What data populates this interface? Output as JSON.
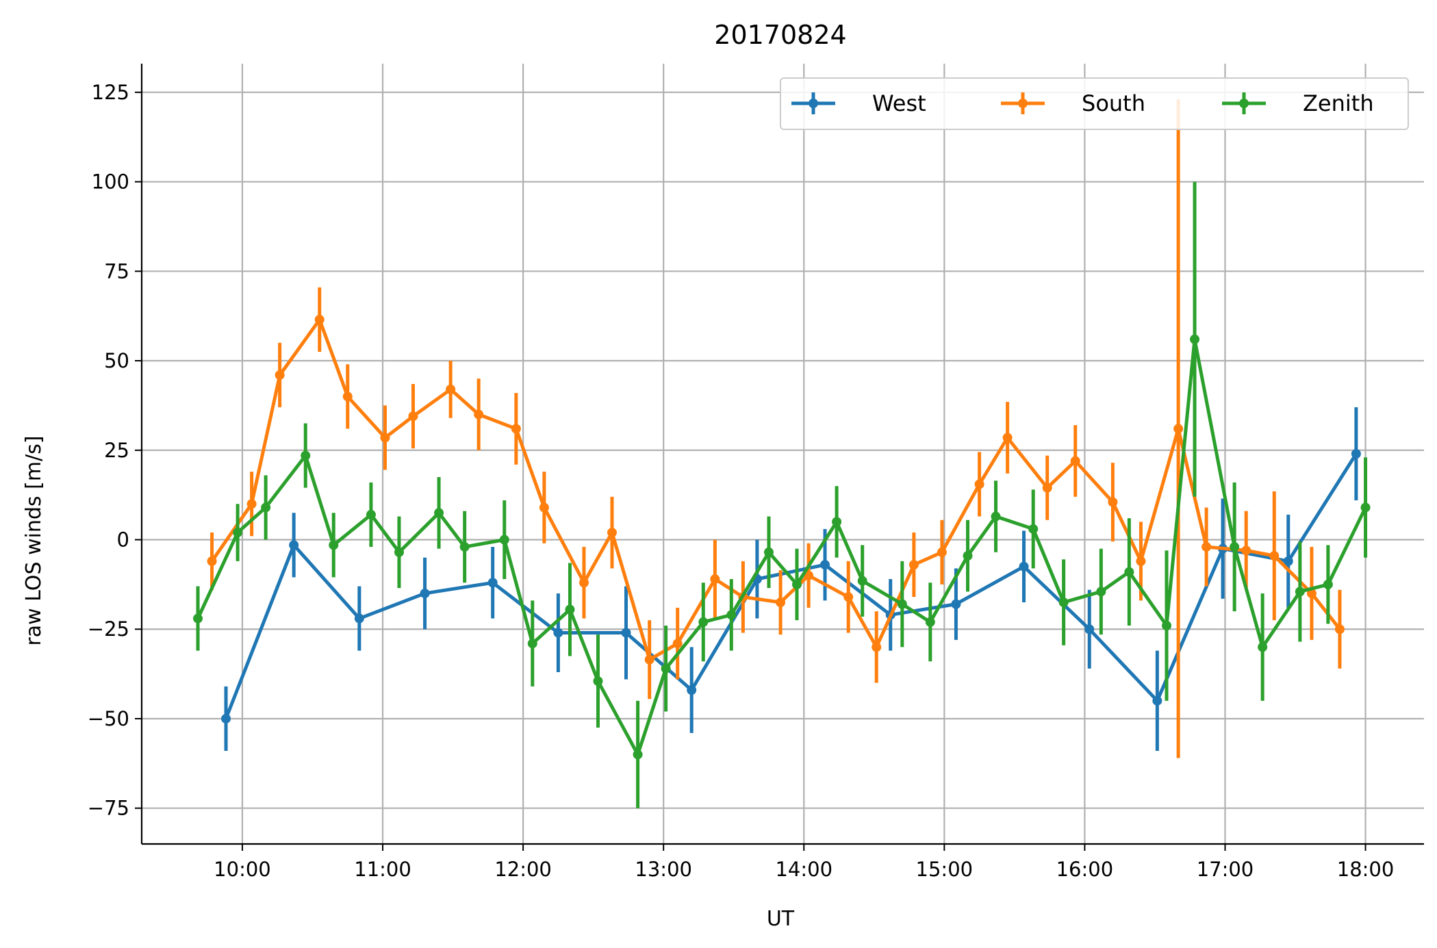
{
  "chart_data": {
    "type": "line",
    "title": "20170824",
    "xlabel": "UT",
    "ylabel": "raw LOS winds [m/s]",
    "grid": true,
    "legend_position": "top-right",
    "legend_columns": 3,
    "xlim": [
      "09:17",
      "18:25"
    ],
    "ylim": [
      -85,
      133
    ],
    "x_ticks": [
      "10:00",
      "11:00",
      "12:00",
      "13:00",
      "14:00",
      "15:00",
      "16:00",
      "17:00",
      "18:00"
    ],
    "y_ticks": [
      125,
      100,
      75,
      50,
      25,
      0,
      -25,
      -50,
      -75
    ],
    "series": [
      {
        "name": "West",
        "color": "#1f77b4",
        "points": [
          {
            "x": "09:53",
            "y": -50,
            "err": 9
          },
          {
            "x": "10:22",
            "y": -1.5,
            "err": 9
          },
          {
            "x": "10:50",
            "y": -22,
            "err": 9
          },
          {
            "x": "11:18",
            "y": -15,
            "err": 10
          },
          {
            "x": "11:47",
            "y": -12,
            "err": 10
          },
          {
            "x": "12:15",
            "y": -26,
            "err": 11
          },
          {
            "x": "12:44",
            "y": -26,
            "err": 13
          },
          {
            "x": "13:12",
            "y": -42,
            "err": 12
          },
          {
            "x": "13:40",
            "y": -11,
            "err": 11
          },
          {
            "x": "14:09",
            "y": -7,
            "err": 10
          },
          {
            "x": "14:37",
            "y": -21,
            "err": 10
          },
          {
            "x": "15:05",
            "y": -18,
            "err": 10
          },
          {
            "x": "15:34",
            "y": -7.5,
            "err": 10
          },
          {
            "x": "16:02",
            "y": -25,
            "err": 11
          },
          {
            "x": "16:31",
            "y": -45,
            "err": 14
          },
          {
            "x": "16:59",
            "y": -2.5,
            "err": 14
          },
          {
            "x": "17:27",
            "y": -6,
            "err": 13
          },
          {
            "x": "17:56",
            "y": 24,
            "err": 13
          }
        ]
      },
      {
        "name": "South",
        "color": "#ff7f0e",
        "points": [
          {
            "x": "09:47",
            "y": -6,
            "err": 8
          },
          {
            "x": "10:04",
            "y": 10,
            "err": 9
          },
          {
            "x": "10:16",
            "y": 46,
            "err": 9
          },
          {
            "x": "10:33",
            "y": 61.5,
            "err": 9
          },
          {
            "x": "10:45",
            "y": 40,
            "err": 9
          },
          {
            "x": "11:01",
            "y": 28.5,
            "err": 9
          },
          {
            "x": "11:13",
            "y": 34.5,
            "err": 9
          },
          {
            "x": "11:29",
            "y": 42,
            "err": 8
          },
          {
            "x": "11:41",
            "y": 35,
            "err": 10
          },
          {
            "x": "11:57",
            "y": 31,
            "err": 10
          },
          {
            "x": "12:09",
            "y": 9,
            "err": 10
          },
          {
            "x": "12:26",
            "y": -12,
            "err": 10
          },
          {
            "x": "12:38",
            "y": 2,
            "err": 10
          },
          {
            "x": "12:54",
            "y": -33.5,
            "err": 11
          },
          {
            "x": "13:06",
            "y": -29,
            "err": 10
          },
          {
            "x": "13:22",
            "y": -11,
            "err": 11
          },
          {
            "x": "13:34",
            "y": -16,
            "err": 10
          },
          {
            "x": "13:50",
            "y": -17.5,
            "err": 9
          },
          {
            "x": "14:02",
            "y": -10,
            "err": 9
          },
          {
            "x": "14:19",
            "y": -16,
            "err": 10
          },
          {
            "x": "14:31",
            "y": -30,
            "err": 10
          },
          {
            "x": "14:47",
            "y": -7,
            "err": 9
          },
          {
            "x": "14:59",
            "y": -3.5,
            "err": 9
          },
          {
            "x": "15:15",
            "y": 15.5,
            "err": 9
          },
          {
            "x": "15:27",
            "y": 28.5,
            "err": 10
          },
          {
            "x": "15:44",
            "y": 14.5,
            "err": 9
          },
          {
            "x": "15:56",
            "y": 22,
            "err": 10
          },
          {
            "x": "16:12",
            "y": 10.5,
            "err": 11
          },
          {
            "x": "16:24",
            "y": -6,
            "err": 11
          },
          {
            "x": "16:40",
            "y": 31,
            "err": 92
          },
          {
            "x": "16:52",
            "y": -2,
            "err": 11
          },
          {
            "x": "17:09",
            "y": -3,
            "err": 11
          },
          {
            "x": "17:21",
            "y": -4.5,
            "err": 18
          },
          {
            "x": "17:37",
            "y": -15,
            "err": 13
          },
          {
            "x": "17:49",
            "y": -25,
            "err": 11
          }
        ]
      },
      {
        "name": "Zenith",
        "color": "#2ca02c",
        "points": [
          {
            "x": "09:41",
            "y": -22,
            "err": 9
          },
          {
            "x": "09:58",
            "y": 2,
            "err": 8
          },
          {
            "x": "10:10",
            "y": 9,
            "err": 9
          },
          {
            "x": "10:27",
            "y": 23.5,
            "err": 9
          },
          {
            "x": "10:39",
            "y": -1.5,
            "err": 9
          },
          {
            "x": "10:55",
            "y": 7,
            "err": 9
          },
          {
            "x": "11:07",
            "y": -3.5,
            "err": 10
          },
          {
            "x": "11:24",
            "y": 7.5,
            "err": 10
          },
          {
            "x": "11:35",
            "y": -2,
            "err": 10
          },
          {
            "x": "11:52",
            "y": 0,
            "err": 11
          },
          {
            "x": "12:04",
            "y": -29,
            "err": 12
          },
          {
            "x": "12:20",
            "y": -19.5,
            "err": 13
          },
          {
            "x": "12:32",
            "y": -39.5,
            "err": 13
          },
          {
            "x": "12:49",
            "y": -60,
            "err": 15
          },
          {
            "x": "13:01",
            "y": -36,
            "err": 12
          },
          {
            "x": "13:17",
            "y": -23,
            "err": 11
          },
          {
            "x": "13:29",
            "y": -21,
            "err": 10
          },
          {
            "x": "13:45",
            "y": -3.5,
            "err": 10
          },
          {
            "x": "13:57",
            "y": -12.5,
            "err": 10
          },
          {
            "x": "14:14",
            "y": 5,
            "err": 10
          },
          {
            "x": "14:25",
            "y": -11.5,
            "err": 10
          },
          {
            "x": "14:42",
            "y": -18,
            "err": 12
          },
          {
            "x": "14:54",
            "y": -23,
            "err": 11
          },
          {
            "x": "15:10",
            "y": -4.5,
            "err": 10
          },
          {
            "x": "15:22",
            "y": 6.5,
            "err": 10
          },
          {
            "x": "15:38",
            "y": 3,
            "err": 11
          },
          {
            "x": "15:51",
            "y": -17.5,
            "err": 12
          },
          {
            "x": "16:07",
            "y": -14.5,
            "err": 12
          },
          {
            "x": "16:19",
            "y": -9,
            "err": 15
          },
          {
            "x": "16:35",
            "y": -24,
            "err": 21
          },
          {
            "x": "16:47",
            "y": 56,
            "err": 44
          },
          {
            "x": "17:04",
            "y": -2,
            "err": 18
          },
          {
            "x": "17:16",
            "y": -30,
            "err": 15
          },
          {
            "x": "17:32",
            "y": -14.5,
            "err": 14
          },
          {
            "x": "17:44",
            "y": -12.5,
            "err": 11
          },
          {
            "x": "18:00",
            "y": 9,
            "err": 14
          }
        ]
      }
    ]
  }
}
